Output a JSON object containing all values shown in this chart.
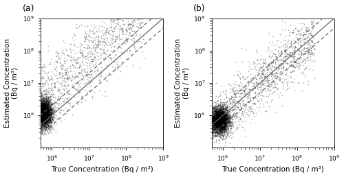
{
  "xlim": [
    500000.0,
    1000000000.0
  ],
  "ylim": [
    100000.0,
    1000000000.0
  ],
  "xlabel": "True Concentration (Bq / m³)",
  "ylabel": "Estimated Concentration (Bq / m³)",
  "panels": [
    "(a)",
    "(b)"
  ],
  "line_color": "#666666",
  "scatter_color": "#000000",
  "scatter_marker": "+",
  "scatter_size": 2,
  "scatter_alpha": 0.35,
  "scatter_lw": 0.4,
  "seed_a": 42,
  "seed_b": 99,
  "n_points": 5000,
  "background_color": "#ffffff",
  "tick_labelsize": 6.5,
  "label_fontsize": 7.5,
  "panel_label_fontsize": 9
}
